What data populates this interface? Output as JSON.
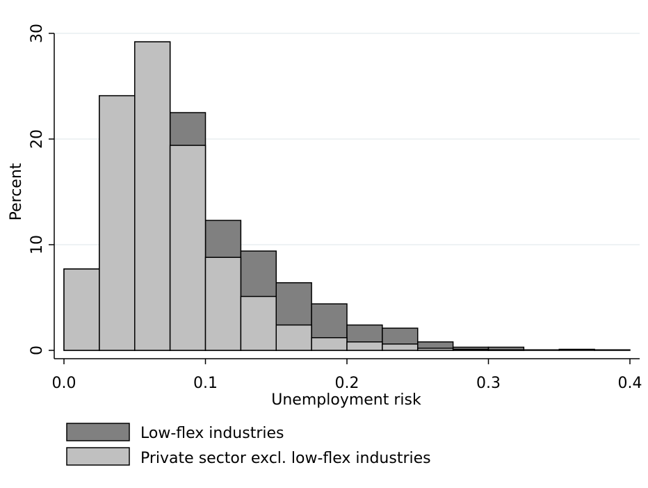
{
  "chart_data": {
    "type": "bar",
    "subtype": "overlaid-histogram",
    "xlabel": "Unemployment risk",
    "ylabel": "Percent",
    "xlim": [
      0.0,
      0.4
    ],
    "ylim": [
      0,
      30
    ],
    "xticks": [
      "0.0",
      "0.1",
      "0.2",
      "0.3",
      "0.4"
    ],
    "xtick_values": [
      0.0,
      0.1,
      0.2,
      0.3,
      0.4
    ],
    "yticks": [
      "0",
      "10",
      "20",
      "30"
    ],
    "ytick_values": [
      0,
      10,
      20,
      30
    ],
    "grid": "horizontal",
    "legend_position": "bottom",
    "bin_width": 0.025,
    "bins": [
      0.0,
      0.025,
      0.05,
      0.075,
      0.1,
      0.125,
      0.15,
      0.175,
      0.2,
      0.225,
      0.25,
      0.275,
      0.3,
      0.325,
      0.35,
      0.375
    ],
    "series": [
      {
        "name": "Low-flex industries",
        "color": "#808080",
        "values": [
          7.7,
          24.1,
          29.2,
          22.5,
          12.3,
          9.4,
          6.4,
          4.4,
          2.4,
          2.1,
          0.8,
          0.3,
          0.3,
          0.05,
          0.1,
          0.05
        ]
      },
      {
        "name": "Private sector excl. low-flex industries",
        "color": "#c0c0c0",
        "values": [
          7.7,
          24.1,
          29.2,
          19.4,
          8.8,
          5.1,
          2.4,
          1.2,
          0.8,
          0.6,
          0.2,
          0.1,
          0.05,
          0.0,
          0.0,
          0.0
        ]
      }
    ]
  }
}
